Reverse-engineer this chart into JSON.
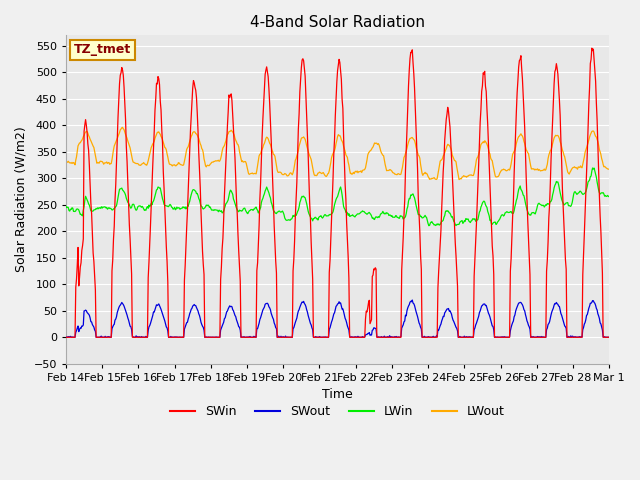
{
  "title": "4-Band Solar Radiation",
  "xlabel": "Time",
  "ylabel": "Solar Radiation (W/m2)",
  "ylim": [
    -50,
    570
  ],
  "yticks": [
    -50,
    0,
    50,
    100,
    150,
    200,
    250,
    300,
    350,
    400,
    450,
    500,
    550
  ],
  "n_days": 15,
  "colors": {
    "SWin": "#ff0000",
    "SWout": "#0000dd",
    "LWin": "#00ee00",
    "LWout": "#ffaa00"
  },
  "fig_bg": "#f0f0f0",
  "plot_bg": "#e8e8e8",
  "annotation_text": "TZ_tmet",
  "annotation_fg": "#880000",
  "annotation_bg": "#ffffcc",
  "annotation_border": "#cc8800",
  "grid_color": "#ffffff",
  "title_fontsize": 11,
  "label_fontsize": 9,
  "tick_fontsize": 8,
  "legend_fontsize": 9,
  "sw_peaks": [
    400,
    510,
    490,
    485,
    460,
    510,
    525,
    520,
    130,
    540,
    425,
    500,
    530,
    515,
    545
  ],
  "lwin_base": [
    240,
    245,
    245,
    245,
    240,
    240,
    225,
    230,
    235,
    225,
    215,
    220,
    235,
    250,
    270
  ],
  "lwout_base": [
    330,
    330,
    325,
    325,
    330,
    310,
    308,
    310,
    315,
    308,
    300,
    305,
    315,
    315,
    320
  ]
}
